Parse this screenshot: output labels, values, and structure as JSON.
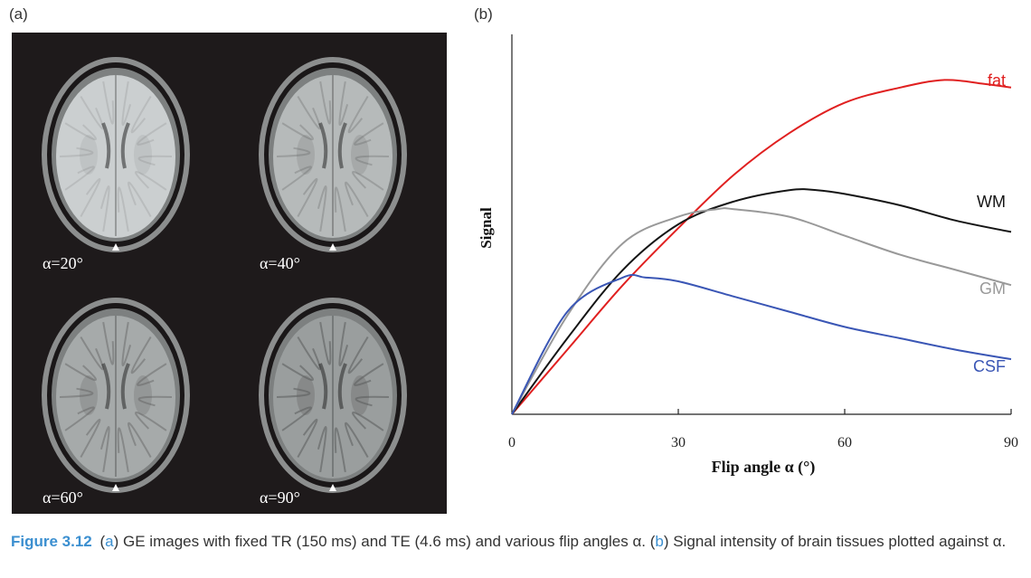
{
  "panels": {
    "a_label": "(a)",
    "b_label": "(b)"
  },
  "mri_images": [
    {
      "label": "α=20°",
      "brightness": "#cbcfd0",
      "contrast": 0.12
    },
    {
      "label": "α=40°",
      "brightness": "#b6baba",
      "contrast": 0.22
    },
    {
      "label": "α=60°",
      "brightness": "#a6aaaa",
      "contrast": 0.3
    },
    {
      "label": "α=90°",
      "brightness": "#9a9e9e",
      "contrast": 0.38
    }
  ],
  "chart_data": {
    "type": "line",
    "title": "",
    "xlabel": "Flip angle α (°)",
    "ylabel": "Signal",
    "xlim": [
      0,
      90
    ],
    "ylim": [
      0,
      1
    ],
    "xticks": [
      0,
      30,
      60,
      90
    ],
    "grid": false,
    "series": [
      {
        "name": "fat",
        "color": "#e02020",
        "x": [
          0,
          10,
          20,
          30,
          40,
          50,
          60,
          70,
          78,
          85,
          90
        ],
        "y": [
          0,
          0.17,
          0.34,
          0.49,
          0.63,
          0.74,
          0.82,
          0.86,
          0.88,
          0.87,
          0.86
        ]
      },
      {
        "name": "WM",
        "color": "#151515",
        "x": [
          0,
          10,
          20,
          30,
          40,
          50,
          55,
          60,
          70,
          80,
          90
        ],
        "y": [
          0,
          0.2,
          0.38,
          0.5,
          0.56,
          0.59,
          0.59,
          0.58,
          0.55,
          0.51,
          0.48
        ]
      },
      {
        "name": "GM",
        "color": "#999999",
        "x": [
          0,
          10,
          20,
          30,
          37,
          40,
          50,
          60,
          70,
          80,
          90
        ],
        "y": [
          0,
          0.26,
          0.45,
          0.52,
          0.54,
          0.54,
          0.52,
          0.47,
          0.42,
          0.38,
          0.34
        ]
      },
      {
        "name": "CSF",
        "color": "#3a56b5",
        "x": [
          0,
          10,
          20,
          24,
          30,
          40,
          50,
          60,
          70,
          80,
          90
        ],
        "y": [
          0,
          0.27,
          0.36,
          0.36,
          0.35,
          0.31,
          0.27,
          0.23,
          0.2,
          0.17,
          0.145
        ]
      }
    ]
  },
  "caption": {
    "figure_number": "Figure 3.12",
    "p1": "(",
    "r1": "a",
    "p2": ") GE images with fixed TR (150 ms) and TE (4.6 ms) and various flip angles α. (",
    "r2": "b",
    "p3": ") Signal intensity of brain tissues plotted against α."
  }
}
